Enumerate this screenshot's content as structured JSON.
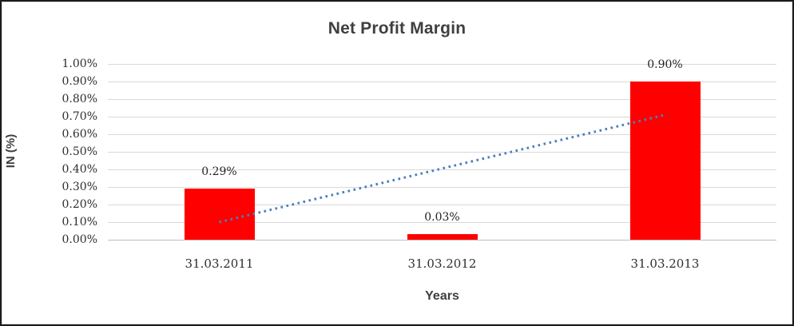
{
  "frame": {
    "border_color": "#1b1b1b",
    "inner_border_color": "#d9d9d9"
  },
  "chart_data": {
    "type": "bar",
    "title": "Net Profit Margin",
    "xlabel": "Years",
    "ylabel": "IN (%)",
    "categories": [
      "31.03.2011",
      "31.03.2012",
      "31.03.2013"
    ],
    "series": [
      {
        "name": "Net Profit Margin",
        "color": "#ff0000",
        "values_pct": [
          0.29,
          0.03,
          0.9
        ],
        "data_labels": [
          "0.29%",
          "0.03%",
          "0.90%"
        ]
      }
    ],
    "y_ticks": [
      "1.00%",
      "0.90%",
      "0.80%",
      "0.70%",
      "0.60%",
      "0.50%",
      "0.40%",
      "0.30%",
      "0.20%",
      "0.10%",
      "0.00%"
    ],
    "ylim": [
      0,
      1.0
    ],
    "y_tick_step": 0.1,
    "grid": true,
    "gridline_color": "#d9d9d9",
    "axis_line_color": "#bfbfbf",
    "legend": "none",
    "trendline": {
      "type": "linear",
      "style": "dotted",
      "color": "#4a7ebf",
      "start_value_pct": 0.1,
      "end_value_pct": 0.71
    }
  }
}
